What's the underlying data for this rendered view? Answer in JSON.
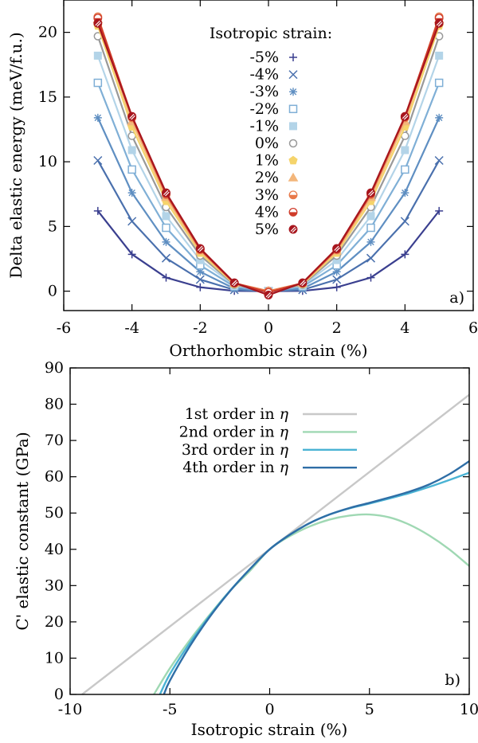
{
  "chart_data": [
    {
      "type": "line",
      "panel_label": "a)",
      "xlabel": "Orthorhombic strain (%)",
      "ylabel": "Delta elastic energy (meV/f.u.)",
      "xlim": [
        -6,
        6
      ],
      "ylim": [
        -1.5,
        22.5
      ],
      "xticks": [
        -6,
        -4,
        -2,
        0,
        2,
        4,
        6
      ],
      "yticks": [
        0,
        5,
        10,
        15,
        20
      ],
      "x": [
        -5,
        -4,
        -3,
        -2,
        -1,
        0,
        1,
        2,
        3,
        4,
        5
      ],
      "legend_title": "Isotropic strain:",
      "legend_position": "top-center",
      "grid": false,
      "series": [
        {
          "name": "-5%",
          "color": "#3a3f8f",
          "marker": "plus",
          "values": [
            6.2,
            2.85,
            1.05,
            0.3,
            0.02,
            0.0,
            0.02,
            0.3,
            1.05,
            2.85,
            6.2
          ]
        },
        {
          "name": "-4%",
          "color": "#4a70ad",
          "marker": "cross",
          "values": [
            10.1,
            5.4,
            2.55,
            0.9,
            0.1,
            0.0,
            0.1,
            0.9,
            2.55,
            5.4,
            10.1
          ]
        },
        {
          "name": "-3%",
          "color": "#5f8fc2",
          "marker": "asterisk",
          "values": [
            13.4,
            7.6,
            3.8,
            1.5,
            0.2,
            0.0,
            0.2,
            1.5,
            3.8,
            7.6,
            13.4
          ]
        },
        {
          "name": "-2%",
          "color": "#7fafd6",
          "marker": "square-open",
          "values": [
            16.1,
            9.4,
            4.9,
            2.0,
            0.35,
            0.0,
            0.35,
            2.0,
            4.9,
            9.4,
            16.1
          ]
        },
        {
          "name": "-1%",
          "color": "#b3d4e8",
          "marker": "square-filled",
          "values": [
            18.2,
            10.9,
            5.8,
            2.4,
            0.45,
            0.0,
            0.45,
            2.4,
            5.8,
            10.9,
            18.2
          ]
        },
        {
          "name": "0%",
          "color": "#999999",
          "marker": "circle-open",
          "values": [
            19.7,
            12.0,
            6.5,
            2.75,
            0.5,
            0.0,
            0.5,
            2.75,
            6.5,
            12.0,
            19.7
          ]
        },
        {
          "name": "1%",
          "color": "#f5d46b",
          "marker": "pentagon-filled",
          "values": [
            20.5,
            12.7,
            6.95,
            2.95,
            0.55,
            0.0,
            0.55,
            2.95,
            6.95,
            12.7,
            20.5
          ]
        },
        {
          "name": "2%",
          "color": "#f3b67b",
          "marker": "triangle-filled",
          "values": [
            21.0,
            13.1,
            7.25,
            3.1,
            0.6,
            0.0,
            0.6,
            3.1,
            7.25,
            13.1,
            21.0
          ]
        },
        {
          "name": "3%",
          "color": "#e8794a",
          "marker": "circle-half",
          "values": [
            21.2,
            13.4,
            7.45,
            3.2,
            0.62,
            0.0,
            0.62,
            3.2,
            7.45,
            13.4,
            21.2
          ]
        },
        {
          "name": "4%",
          "color": "#cf3b2a",
          "marker": "circle-half",
          "values": [
            21.1,
            13.5,
            7.55,
            3.25,
            0.63,
            -0.1,
            0.63,
            3.25,
            7.55,
            13.5,
            21.1
          ]
        },
        {
          "name": "5%",
          "color": "#a8161e",
          "marker": "circle-hatched",
          "values": [
            20.7,
            13.5,
            7.6,
            3.3,
            0.65,
            -0.3,
            0.65,
            3.3,
            7.6,
            13.5,
            20.7
          ]
        }
      ]
    },
    {
      "type": "line",
      "panel_label": "b)",
      "xlabel": "Isotropic strain (%)",
      "ylabel": "C' elastic constant (GPa)",
      "xlim": [
        -10,
        10
      ],
      "ylim": [
        0,
        90
      ],
      "xticks": [
        -10,
        -5,
        0,
        5,
        10
      ],
      "yticks": [
        0,
        10,
        20,
        30,
        40,
        50,
        60,
        70,
        80,
        90
      ],
      "legend_position": "top-center",
      "grid": false,
      "series": [
        {
          "name": "1st order in",
          "symbol": "η",
          "color": "#c8c8c8",
          "x": [
            -9.4,
            10
          ],
          "values": [
            0,
            82.6
          ]
        },
        {
          "name": "2nd order in",
          "symbol": "η",
          "color": "#9fd8b3",
          "x": [
            -5.8,
            -5,
            -4,
            -3,
            -2,
            -1,
            0,
            1,
            2,
            3,
            4,
            5,
            6,
            7,
            8,
            9,
            10
          ],
          "values": [
            0,
            7.2,
            15.0,
            22.0,
            28.5,
            34.0,
            40.0,
            43.6,
            46.3,
            48.2,
            49.3,
            49.6,
            48.8,
            46.8,
            43.8,
            40.0,
            35.4
          ]
        },
        {
          "name": "3rd order in",
          "symbol": "η",
          "color": "#4ab3d4",
          "x": [
            -5.5,
            -5,
            -4,
            -3,
            -2,
            -1,
            0,
            1,
            2,
            3,
            4,
            5,
            6,
            7,
            8,
            9,
            10
          ],
          "values": [
            0,
            5.6,
            14.2,
            21.7,
            28.5,
            34.5,
            40.0,
            44.0,
            47.2,
            49.6,
            51.3,
            52.6,
            54.0,
            55.5,
            57.2,
            59.1,
            61.1
          ]
        },
        {
          "name": "4th order in",
          "symbol": "η",
          "color": "#2f6ea6",
          "x": [
            -5.3,
            -5,
            -4,
            -3,
            -2,
            -1,
            0,
            1,
            2,
            3,
            4,
            5,
            6,
            7,
            8,
            9,
            10
          ],
          "values": [
            0,
            3.8,
            13.3,
            21.4,
            28.4,
            34.5,
            40.0,
            44.0,
            47.2,
            49.6,
            51.4,
            52.8,
            54.3,
            55.9,
            57.9,
            60.7,
            64.3
          ]
        }
      ]
    }
  ]
}
